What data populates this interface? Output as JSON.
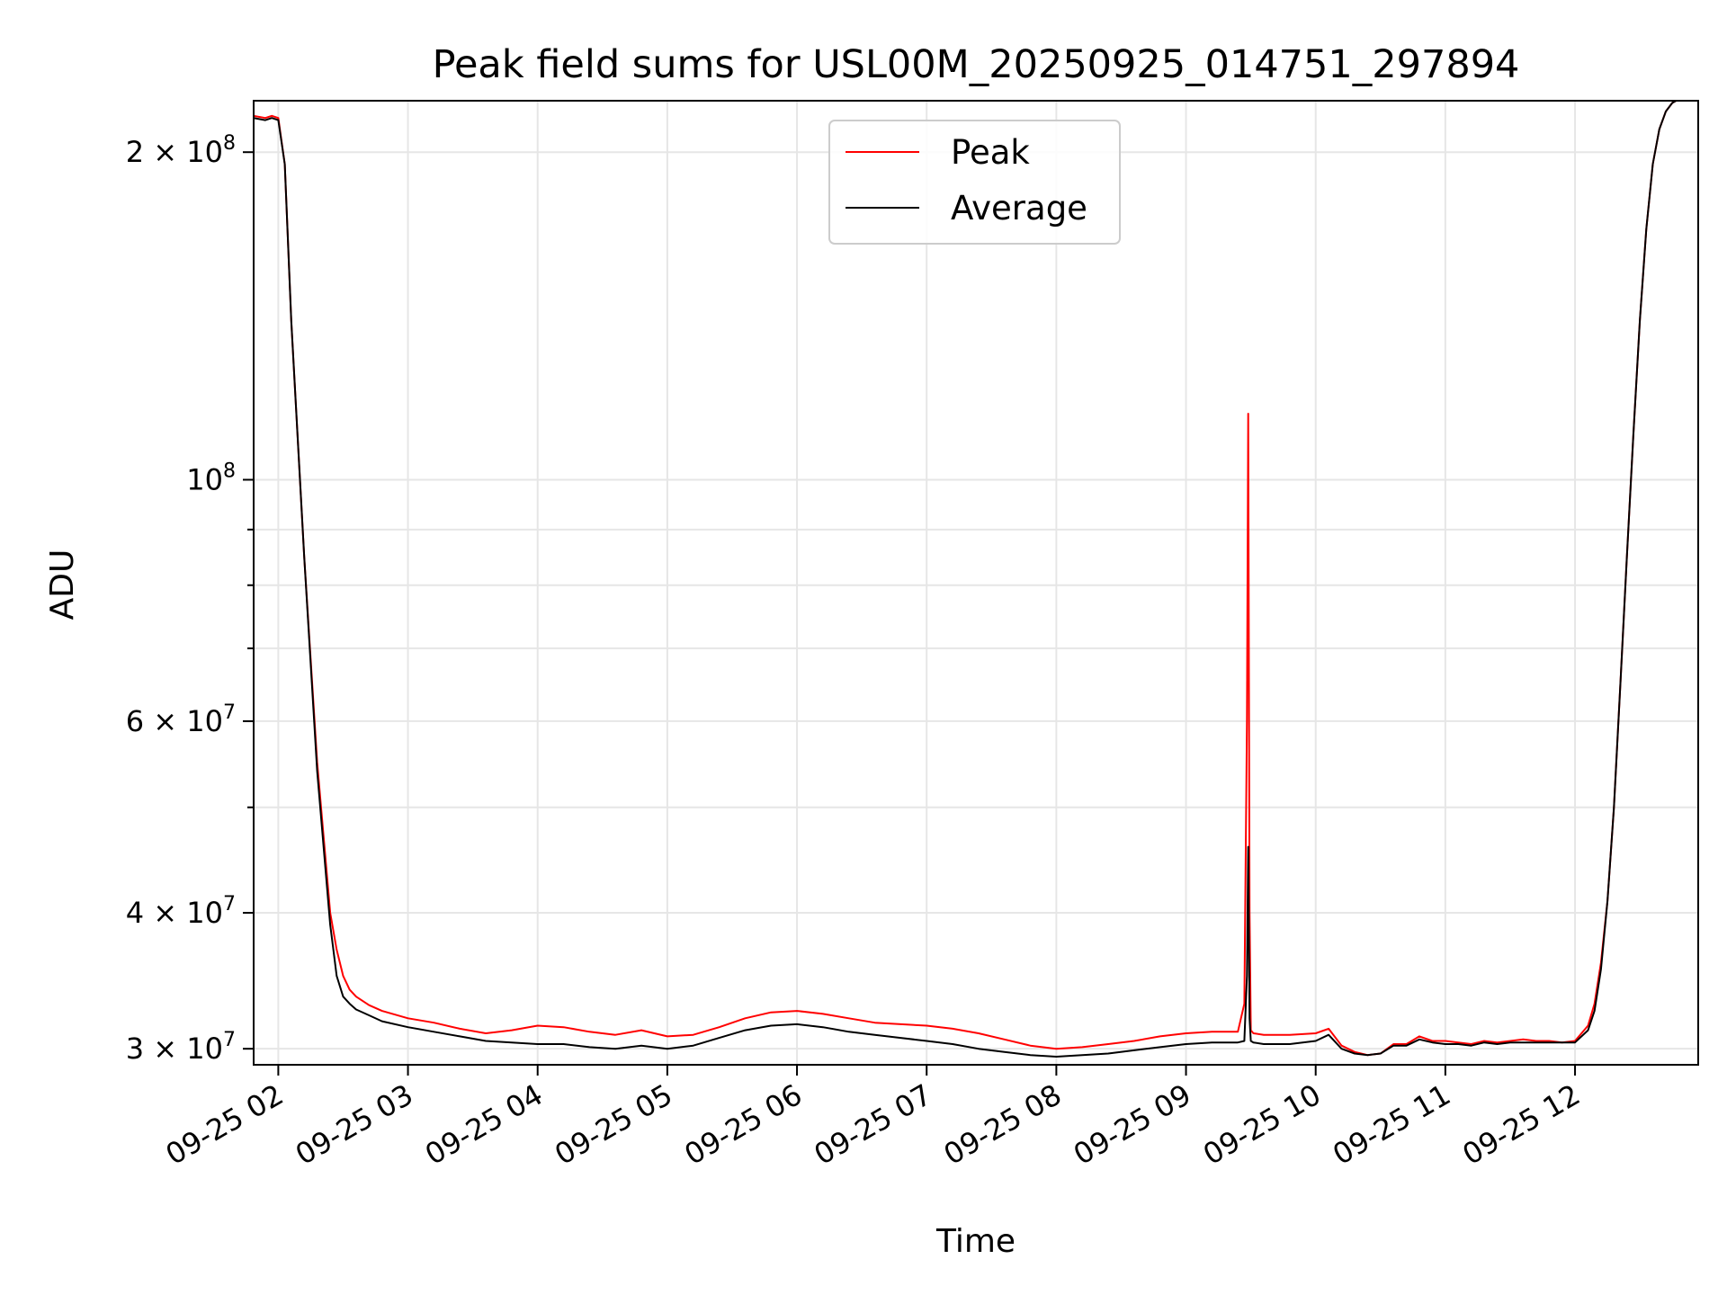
{
  "chart_data": {
    "type": "line",
    "title": "Peak field sums for USL00M_20250925_014751_297894",
    "xlabel": "Time",
    "ylabel": "ADU",
    "yscale": "log",
    "xlim": [
      1.81,
      12.95
    ],
    "ylim": [
      29000000,
      223000000
    ],
    "grid": true,
    "legend_location": "upper-center",
    "x_ticks": [
      {
        "value": 2,
        "label": "09-25 02"
      },
      {
        "value": 3,
        "label": "09-25 03"
      },
      {
        "value": 4,
        "label": "09-25 04"
      },
      {
        "value": 5,
        "label": "09-25 05"
      },
      {
        "value": 6,
        "label": "09-25 06"
      },
      {
        "value": 7,
        "label": "09-25 07"
      },
      {
        "value": 8,
        "label": "09-25 08"
      },
      {
        "value": 9,
        "label": "09-25 09"
      },
      {
        "value": 10,
        "label": "09-25 10"
      },
      {
        "value": 11,
        "label": "09-25 11"
      },
      {
        "value": 12,
        "label": "09-25 12"
      }
    ],
    "y_ticks": [
      {
        "value": 200000000,
        "mantissa": "2 × 10",
        "exponent": "8"
      },
      {
        "value": 100000000,
        "mantissa": "10",
        "exponent": "8"
      },
      {
        "value": 60000000,
        "mantissa": "6 × 10",
        "exponent": "7"
      },
      {
        "value": 40000000,
        "mantissa": "4 × 10",
        "exponent": "7"
      },
      {
        "value": 30000000,
        "mantissa": "3 × 10",
        "exponent": "7"
      }
    ],
    "y_minor_ticks": [
      50000000,
      70000000,
      80000000,
      90000000
    ],
    "series": [
      {
        "name": "Peak",
        "color": "#ff0000",
        "x": [
          1.81,
          1.9,
          1.95,
          2.0,
          2.05,
          2.1,
          2.2,
          2.3,
          2.4,
          2.45,
          2.5,
          2.55,
          2.6,
          2.7,
          2.8,
          3.0,
          3.2,
          3.4,
          3.6,
          3.8,
          4.0,
          4.2,
          4.4,
          4.6,
          4.8,
          5.0,
          5.2,
          5.4,
          5.6,
          5.8,
          6.0,
          6.2,
          6.4,
          6.6,
          6.8,
          7.0,
          7.2,
          7.4,
          7.6,
          7.8,
          8.0,
          8.2,
          8.4,
          8.6,
          8.8,
          9.0,
          9.2,
          9.4,
          9.45,
          9.47,
          9.48,
          9.49,
          9.5,
          9.52,
          9.6,
          9.8,
          10.0,
          10.1,
          10.2,
          10.3,
          10.4,
          10.5,
          10.6,
          10.7,
          10.8,
          10.9,
          11.0,
          11.1,
          11.2,
          11.3,
          11.4,
          11.5,
          11.6,
          11.7,
          11.8,
          11.9,
          12.0,
          12.1,
          12.15,
          12.2,
          12.25,
          12.3,
          12.35,
          12.4,
          12.45,
          12.5,
          12.55,
          12.6,
          12.65,
          12.7,
          12.75,
          12.78,
          12.95
        ],
        "y": [
          216000000,
          215000000,
          216000000,
          215000000,
          195000000,
          140000000,
          85000000,
          55000000,
          40000000,
          37000000,
          35000000,
          34000000,
          33500000,
          32900000,
          32500000,
          32000000,
          31700000,
          31300000,
          31000000,
          31200000,
          31500000,
          31400000,
          31100000,
          30900000,
          31200000,
          30800000,
          30900000,
          31400000,
          32000000,
          32400000,
          32500000,
          32300000,
          32000000,
          31700000,
          31600000,
          31500000,
          31300000,
          31000000,
          30600000,
          30200000,
          30000000,
          30100000,
          30300000,
          30500000,
          30800000,
          31000000,
          31100000,
          31100000,
          33000000,
          60000000,
          115000000,
          40000000,
          31200000,
          31000000,
          30900000,
          30900000,
          31000000,
          31300000,
          30200000,
          29800000,
          29600000,
          29700000,
          30300000,
          30300000,
          30800000,
          30500000,
          30500000,
          30400000,
          30300000,
          30500000,
          30400000,
          30500000,
          30600000,
          30500000,
          30500000,
          30400000,
          30500000,
          31500000,
          33000000,
          36000000,
          41000000,
          50000000,
          65000000,
          85000000,
          110000000,
          140000000,
          170000000,
          195000000,
          210000000,
          218000000,
          222000000,
          223000000,
          223000000
        ]
      },
      {
        "name": "Average",
        "color": "#000000",
        "x": [
          1.81,
          1.9,
          1.95,
          2.0,
          2.05,
          2.1,
          2.2,
          2.3,
          2.4,
          2.45,
          2.5,
          2.55,
          2.6,
          2.7,
          2.8,
          3.0,
          3.2,
          3.4,
          3.6,
          3.8,
          4.0,
          4.2,
          4.4,
          4.6,
          4.8,
          5.0,
          5.2,
          5.4,
          5.6,
          5.8,
          6.0,
          6.2,
          6.4,
          6.6,
          6.8,
          7.0,
          7.2,
          7.4,
          7.6,
          7.8,
          8.0,
          8.2,
          8.4,
          8.6,
          8.8,
          9.0,
          9.2,
          9.4,
          9.45,
          9.47,
          9.48,
          9.49,
          9.5,
          9.52,
          9.6,
          9.8,
          10.0,
          10.1,
          10.2,
          10.3,
          10.4,
          10.5,
          10.6,
          10.7,
          10.8,
          10.9,
          11.0,
          11.1,
          11.2,
          11.3,
          11.4,
          11.5,
          11.6,
          11.7,
          11.8,
          11.9,
          12.0,
          12.1,
          12.15,
          12.2,
          12.25,
          12.3,
          12.35,
          12.4,
          12.45,
          12.5,
          12.55,
          12.6,
          12.65,
          12.7,
          12.75,
          12.78,
          12.95
        ],
        "y": [
          215000000,
          214000000,
          215000000,
          214000000,
          195000000,
          140000000,
          85000000,
          54000000,
          39000000,
          35000000,
          33500000,
          33000000,
          32600000,
          32200000,
          31800000,
          31400000,
          31100000,
          30800000,
          30500000,
          30400000,
          30300000,
          30300000,
          30100000,
          30000000,
          30200000,
          30000000,
          30200000,
          30700000,
          31200000,
          31500000,
          31600000,
          31400000,
          31100000,
          30900000,
          30700000,
          30500000,
          30300000,
          30000000,
          29800000,
          29600000,
          29500000,
          29600000,
          29700000,
          29900000,
          30100000,
          30300000,
          30400000,
          30400000,
          30500000,
          35000000,
          46000000,
          32000000,
          30500000,
          30400000,
          30300000,
          30300000,
          30500000,
          30900000,
          30000000,
          29700000,
          29600000,
          29700000,
          30200000,
          30200000,
          30600000,
          30400000,
          30300000,
          30300000,
          30200000,
          30400000,
          30300000,
          30400000,
          30400000,
          30400000,
          30400000,
          30400000,
          30400000,
          31200000,
          32500000,
          35500000,
          41000000,
          50000000,
          65000000,
          85000000,
          110000000,
          140000000,
          170000000,
          195000000,
          210000000,
          218000000,
          222000000,
          223000000,
          223000000
        ]
      }
    ]
  }
}
